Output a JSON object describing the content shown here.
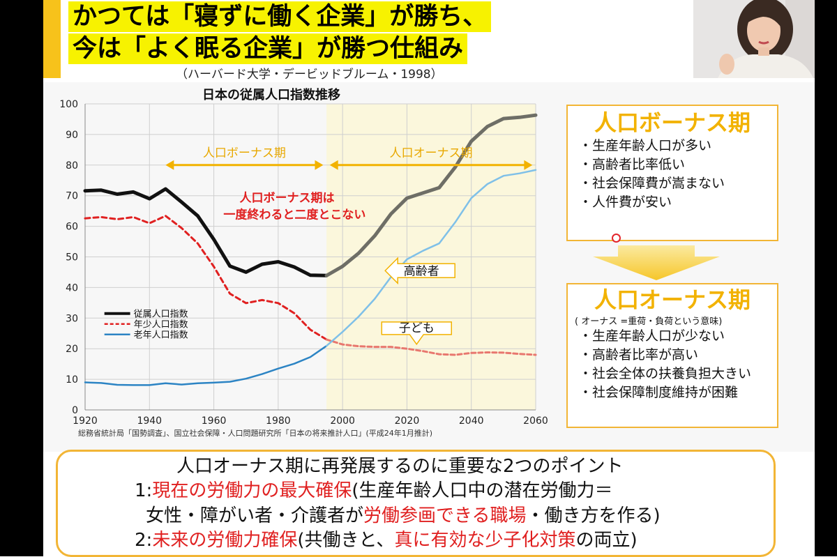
{
  "slide": {
    "title_line1": "かつては「寝ずに働く企業」が勝ち、",
    "title_line2": "今は「よく眠る企業」が勝つ仕組み",
    "subtitle": "（ハーバード大学・デービッドブルーム・1998）"
  },
  "chart_data": {
    "type": "line",
    "title": "日本の従属人口指数推移",
    "x_ticks": [
      1920,
      1940,
      1960,
      1980,
      2000,
      2020,
      2040,
      2060
    ],
    "y_ticks": [
      0,
      10,
      20,
      30,
      40,
      50,
      60,
      70,
      80,
      90,
      100
    ],
    "xlim": [
      1920,
      2060
    ],
    "ylim": [
      0,
      100
    ],
    "grid": true,
    "legend_position": "left",
    "projection_start": 1995,
    "series": [
      {
        "name": "従属人口指数",
        "color": "#111111",
        "x": [
          1920,
          1925,
          1930,
          1935,
          1940,
          1945,
          1950,
          1955,
          1960,
          1965,
          1970,
          1975,
          1980,
          1985,
          1990,
          1995
        ],
        "values": [
          71.6,
          71.8,
          70.5,
          71.2,
          69.0,
          72.2,
          67.9,
          63.4,
          55.7,
          47.0,
          45.0,
          47.6,
          48.4,
          46.7,
          44.0,
          43.9
        ]
      },
      {
        "name": "従属人口指数 推計",
        "color": "#6e6e66",
        "x": [
          1995,
          2000,
          2005,
          2010,
          2015,
          2020,
          2025,
          2030,
          2035,
          2040,
          2045,
          2050,
          2055,
          2060
        ],
        "values": [
          43.9,
          46.9,
          51.2,
          56.9,
          64.0,
          69.2,
          70.9,
          72.6,
          79.3,
          87.8,
          92.6,
          95.2,
          95.6,
          96.3
        ]
      },
      {
        "name": "年少人口指数",
        "color": "#e02020",
        "x": [
          1920,
          1925,
          1930,
          1935,
          1940,
          1945,
          1950,
          1955,
          1960,
          1965,
          1970,
          1975,
          1980,
          1985,
          1990,
          1995
        ],
        "values": [
          62.6,
          63.0,
          62.3,
          63.0,
          61.0,
          63.4,
          59.4,
          54.4,
          46.8,
          38.0,
          34.9,
          35.9,
          34.9,
          31.6,
          26.2,
          23.0
        ]
      },
      {
        "name": "年少人口指数 推計",
        "color": "#e8776e",
        "x": [
          1995,
          2000,
          2005,
          2010,
          2015,
          2020,
          2025,
          2030,
          2035,
          2040,
          2045,
          2050,
          2055,
          2060
        ],
        "values": [
          23.0,
          21.4,
          20.8,
          20.6,
          20.6,
          20.0,
          19.2,
          18.2,
          18.0,
          18.6,
          18.8,
          18.7,
          18.3,
          18.0
        ]
      },
      {
        "name": "老年人口指数",
        "color": "#2c84c4",
        "x": [
          1920,
          1925,
          1930,
          1935,
          1940,
          1945,
          1950,
          1955,
          1960,
          1965,
          1970,
          1975,
          1980,
          1985,
          1990,
          1995
        ],
        "values": [
          9.0,
          8.8,
          8.2,
          8.1,
          8.1,
          8.7,
          8.3,
          8.7,
          8.9,
          9.2,
          10.2,
          11.7,
          13.5,
          15.1,
          17.3,
          20.9
        ]
      },
      {
        "name": "老年人口指数 推計",
        "color": "#7fc0e8",
        "x": [
          1995,
          2000,
          2005,
          2010,
          2015,
          2020,
          2025,
          2030,
          2035,
          2040,
          2045,
          2050,
          2055,
          2060
        ],
        "values": [
          20.9,
          25.5,
          30.5,
          36.3,
          43.4,
          49.2,
          52.0,
          54.4,
          61.3,
          69.2,
          73.8,
          76.5,
          77.3,
          78.4
        ]
      }
    ],
    "legend": [
      "従属人口指数",
      "年少人口指数",
      "老年人口指数"
    ],
    "annotations": {
      "bonus_arrow_label": "人口ボーナス期",
      "onus_arrow_label": "人口オーナス期",
      "red_note_line1": "人口ボーナス期は",
      "red_note_line2": "一度終わると二度とこない",
      "elderly_label": "高齢者",
      "children_label": "子ども"
    },
    "source": "総務省統計局「国勢調査」、国立社会保障・人口問題研究所「日本の将来推計人口」(平成24年1月推計)"
  },
  "bonus_box": {
    "title": "人口ボーナス期",
    "items": [
      "生産年齢人口が多い",
      "高齢者比率低い",
      "社会保障費が嵩まない",
      "人件費が安い"
    ]
  },
  "onus_box": {
    "title": "人口オーナス期",
    "meaning": "( オーナス =重荷・負荷という意味)",
    "items": [
      "生産年齢人口が少ない",
      "高齢者比率が高い",
      "社会全体の扶養負担大きい",
      "社会保障制度維持が困難"
    ]
  },
  "bottom_box": {
    "heading": "人口オーナス期に再発展するのに重要な2つのポイント",
    "p1_num": "1:",
    "p1_red": "現在の労働力の最大確保",
    "p1_rest": "(生産年齢人口中の潜在労働力＝",
    "p1b_pre": "女性・障がい者・介護者が",
    "p1b_red": "労働参画できる職場",
    "p1b_post": "・働き方を作る)",
    "p2_num": "2:",
    "p2_red": "未来の労働力確保",
    "p2_mid": "(共働きと、",
    "p2_red2": "真に有効な少子化対策",
    "p2_post": "の両立)"
  },
  "colors": {
    "accent_yellow": "#f7f200",
    "box_orange": "#f2b535",
    "title_gold": "#f2b200",
    "emphasis_red": "#e02020"
  }
}
